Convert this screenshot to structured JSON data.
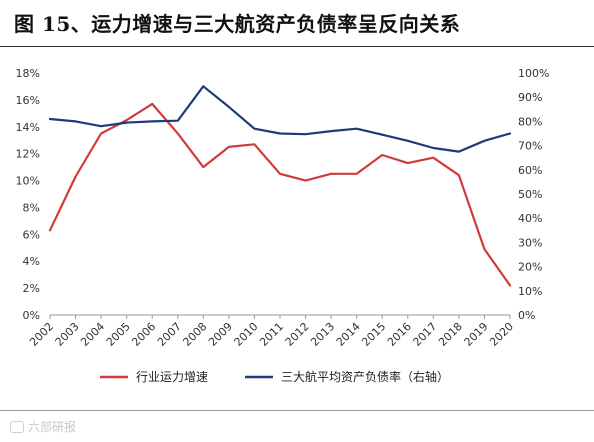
{
  "title": "图 15、运力增速与三大航资产负债率呈反向关系",
  "watermark": "六部研报",
  "chart_data": {
    "type": "line",
    "x": [
      "2002",
      "2003",
      "2004",
      "2005",
      "2006",
      "2007",
      "2008",
      "2009",
      "2010",
      "2011",
      "2012",
      "2013",
      "2014",
      "2015",
      "2016",
      "2017",
      "2018",
      "2019",
      "2020"
    ],
    "series": [
      {
        "name": "行业运力增速",
        "axis": "left",
        "color": "#d23a3a",
        "values": [
          6.3,
          10.3,
          13.5,
          14.5,
          15.7,
          13.5,
          11.0,
          12.5,
          12.7,
          10.5,
          10.0,
          10.5,
          10.5,
          11.9,
          11.3,
          11.7,
          10.4,
          4.9,
          2.2
        ]
      },
      {
        "name": "三大航平均资产负债率（右轴）",
        "axis": "right",
        "color": "#1f3a7a",
        "values": [
          81.0,
          80.0,
          78.0,
          79.5,
          80.0,
          80.3,
          94.5,
          86.0,
          77.0,
          75.0,
          74.7,
          76.0,
          77.0,
          74.5,
          72.0,
          69.0,
          67.5,
          72.0,
          75.0
        ]
      }
    ],
    "y_left": {
      "min": 0,
      "max": 18,
      "ticks": [
        "0%",
        "2%",
        "4%",
        "6%",
        "8%",
        "10%",
        "12%",
        "14%",
        "16%",
        "18%"
      ]
    },
    "y_right": {
      "min": 0,
      "max": 100,
      "ticks": [
        "0%",
        "10%",
        "20%",
        "30%",
        "40%",
        "50%",
        "60%",
        "70%",
        "80%",
        "90%",
        "100%"
      ]
    },
    "grid": false,
    "legend_position": "bottom"
  }
}
